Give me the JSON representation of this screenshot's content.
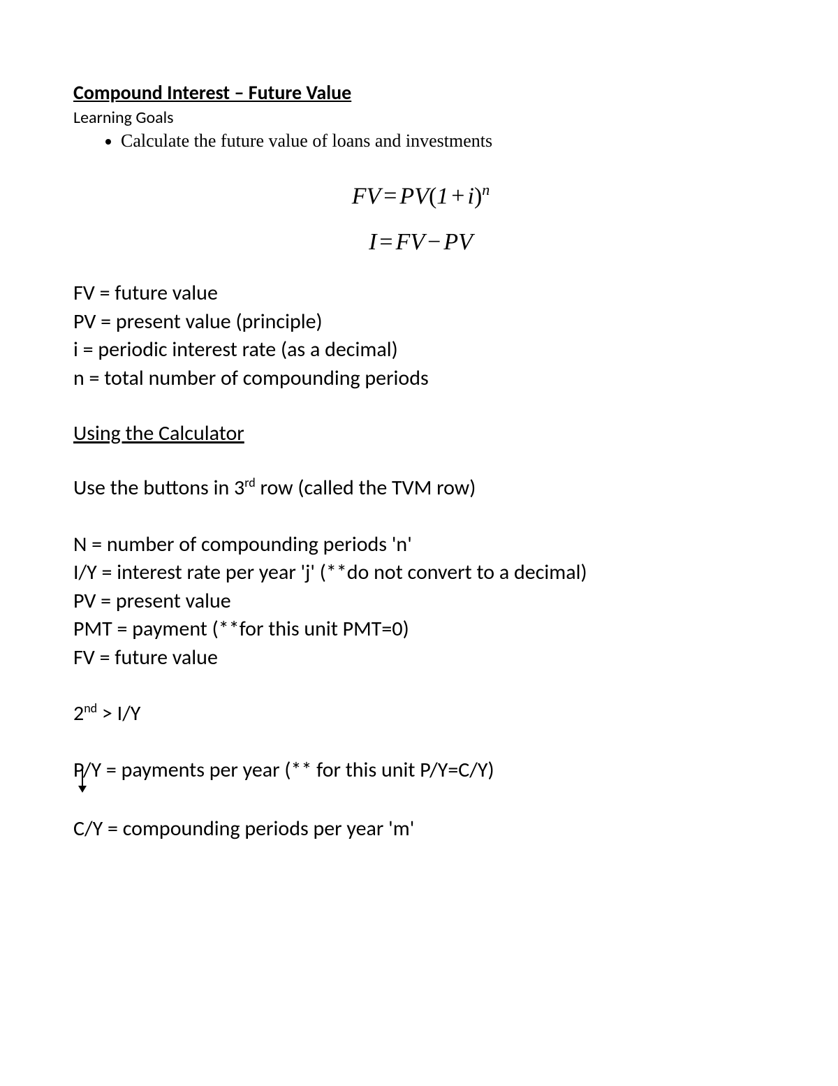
{
  "title": "Compound Interest – Future Value",
  "learning_goals_label": "Learning Goals",
  "goals": [
    "Calculate the future value of loans and investments"
  ],
  "formulas": {
    "fv_html": "<i>FV</i><span class='equals'>=</span><i>PV</i><span class='paren'>(</span>1<span class='plus'>+</span><i>i</i><span class='paren'>)</span><sup><i>n</i></sup>",
    "i_html": "<i>I</i><span class='equals'>=</span><i>FV</i><span class='minus'>−</span><i>PV</i>"
  },
  "definitions": [
    "FV = future value",
    "PV = present value (principle)",
    "i = periodic interest rate (as a decimal)",
    "n = total number of compounding periods"
  ],
  "calc_section_title": "Using the Calculator",
  "calc_intro_html": "Use the buttons in 3<sup>rd</sup> row (called the TVM row)",
  "tvm_keys": [
    "N = number of compounding periods 'n'",
    "I/Y = interest rate per year 'j' (**do not convert to a decimal)",
    "PV = present value",
    "PMT = payment (**for this unit PMT=0)",
    "FV = future value"
  ],
  "second_iy_html": "2<sup>nd</sup> > I/Y",
  "py_line": "P/Y = payments per year (** for this unit P/Y=C/Y)",
  "cy_line": "C/Y = compounding periods per year 'm'"
}
